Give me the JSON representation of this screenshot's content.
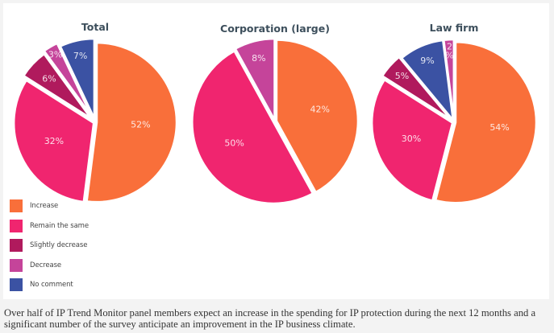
{
  "colors": {
    "Increase": "#f96f3a",
    "Remain the same": "#f0256f",
    "Slightly decrease": "#b01a5d",
    "Decrease": "#c5449a",
    "No comment": "#3b52a3"
  },
  "legend": [
    {
      "label": "Increase",
      "color": "#f96f3a"
    },
    {
      "label": "Remain the same",
      "color": "#f0256f"
    },
    {
      "label": "Slightly decrease",
      "color": "#b01a5d"
    },
    {
      "label": "Decrease",
      "color": "#c5449a"
    },
    {
      "label": "No comment",
      "color": "#3b52a3"
    }
  ],
  "chart_data": [
    {
      "type": "pie",
      "title": "Total",
      "slices": [
        {
          "label": "Increase",
          "value": 52,
          "display": "52%"
        },
        {
          "label": "Remain the same",
          "value": 32,
          "display": "32%"
        },
        {
          "label": "Slightly decrease",
          "value": 6,
          "display": "6%"
        },
        {
          "label": "Decrease",
          "value": 3,
          "display": "3%"
        },
        {
          "label": "No comment",
          "value": 7,
          "display": "7%"
        }
      ],
      "legend_position": "bottom-left"
    },
    {
      "type": "pie",
      "title": "Corporation (large)",
      "slices": [
        {
          "label": "Increase",
          "value": 42,
          "display": "42%"
        },
        {
          "label": "Remain the same",
          "value": 50,
          "display": "50%"
        },
        {
          "label": "Decrease",
          "value": 8,
          "display": "8%"
        }
      ]
    },
    {
      "type": "pie",
      "title": "Law firm",
      "slices": [
        {
          "label": "Increase",
          "value": 54,
          "display": "54%"
        },
        {
          "label": "Remain the same",
          "value": 30,
          "display": "30%"
        },
        {
          "label": "Slightly decrease",
          "value": 5,
          "display": "5%"
        },
        {
          "label": "No comment",
          "value": 9,
          "display": "9%"
        },
        {
          "label": "Decrease",
          "value": 2,
          "display": "2\n%"
        }
      ]
    }
  ],
  "caption": "Over half of IP Trend Monitor panel members expect an increase in the spending for IP protection during the next 12 months and a significant number of the survey anticipate an improvement in the IP business climate."
}
